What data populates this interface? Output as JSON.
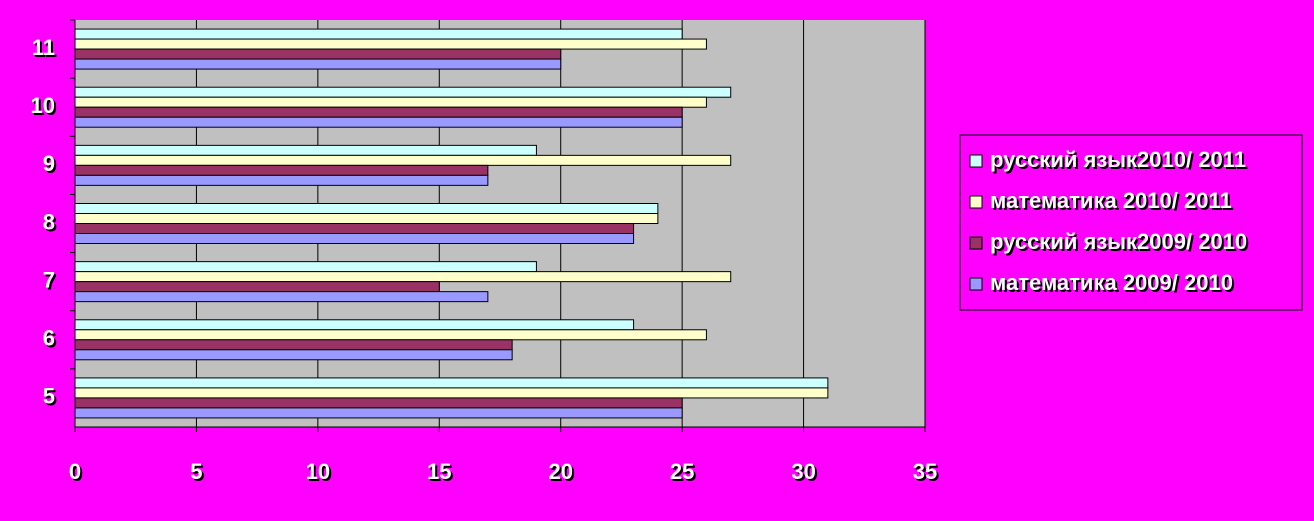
{
  "chart_data": {
    "type": "hbar",
    "categories": [
      "5",
      "6",
      "7",
      "8",
      "9",
      "10",
      "11"
    ],
    "series": [
      {
        "name": "русский язык2010/ 2011",
        "color": "#CCFFFF",
        "values": [
          31,
          23,
          19,
          24,
          19,
          27,
          25
        ]
      },
      {
        "name": "математика 2010/ 2011",
        "color": "#FFFFCC",
        "values": [
          31,
          26,
          27,
          24,
          27,
          26,
          26
        ]
      },
      {
        "name": "русский язык2009/ 2010",
        "color": "#993366",
        "values": [
          25,
          18,
          15,
          23,
          17,
          25,
          20
        ]
      },
      {
        "name": "математика 2009/ 2010",
        "color": "#9999FF",
        "values": [
          25,
          18,
          17,
          23,
          17,
          25,
          20
        ]
      }
    ],
    "xlim": [
      0,
      35
    ],
    "xticks": [
      0,
      5,
      10,
      15,
      20,
      25,
      30,
      35
    ],
    "grid": true,
    "plot_color": "#C0C0C0",
    "background": "#FF00FF",
    "legend": "right"
  }
}
